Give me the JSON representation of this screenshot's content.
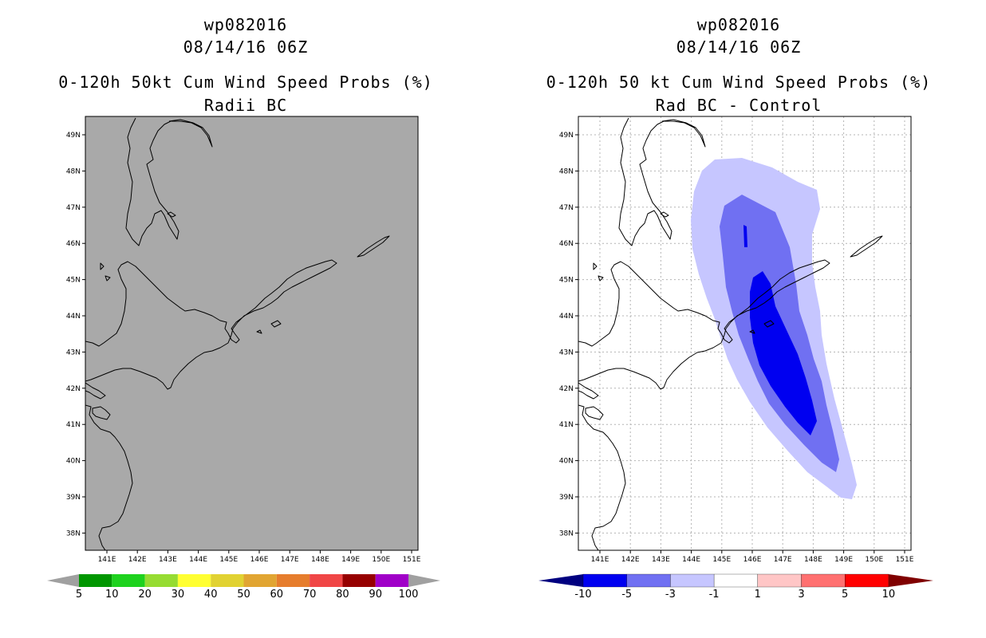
{
  "chart_data": [
    {
      "type": "map",
      "title": [
        "wp082016",
        "08/14/16 06Z",
        "0-120h 50kt Cum Wind Speed Probs (%)",
        "Radii BC"
      ],
      "lon_ticks": [
        "141E",
        "142E",
        "143E",
        "144E",
        "145E",
        "146E",
        "147E",
        "148E",
        "149E",
        "150E",
        "151E"
      ],
      "lat_ticks": [
        "49N",
        "48N",
        "47N",
        "46N",
        "45N",
        "44N",
        "43N",
        "42N",
        "41N",
        "40N",
        "39N",
        "38N"
      ],
      "grid": false,
      "field": "no probabilities above 5% (gray fill)",
      "fill_color": "#a9a9a9",
      "colorbar": {
        "labels": [
          "5",
          "10",
          "20",
          "30",
          "40",
          "50",
          "60",
          "70",
          "80",
          "90",
          "100"
        ],
        "colors": [
          "#009600",
          "#1ed21e",
          "#96dc32",
          "#ffff32",
          "#e1d232",
          "#e1a532",
          "#e67d2d",
          "#f04646",
          "#960000",
          "#a000c8"
        ],
        "end_color": "#a0a0a0"
      }
    },
    {
      "type": "map",
      "title": [
        "wp082016",
        "08/14/16 06Z",
        "0-120h 50 kt Cum Wind Speed Probs (%)",
        "Rad BC - Control"
      ],
      "lon_ticks": [
        "141E",
        "142E",
        "143E",
        "144E",
        "145E",
        "146E",
        "147E",
        "148E",
        "149E",
        "150E",
        "151E"
      ],
      "lat_ticks": [
        "49N",
        "48N",
        "47N",
        "46N",
        "45N",
        "44N",
        "43N",
        "42N",
        "41N",
        "40N",
        "39N",
        "38N"
      ],
      "grid": true,
      "field": "difference contours, negative values along storm track",
      "levels": [
        {
          "range": "-3 to -1",
          "color": "#c6c6ff"
        },
        {
          "range": "-5 to -3",
          "color": "#7070f2"
        },
        {
          "range": "-10 to -5",
          "color": "#0000f0"
        }
      ],
      "colorbar": {
        "labels": [
          "-10",
          "-5",
          "-3",
          "-1",
          "1",
          "3",
          "5",
          "10"
        ],
        "colors": [
          "#0000f0",
          "#7070f2",
          "#c6c6ff",
          "#ffffff",
          "#ffc6c6",
          "#ff7070",
          "#ff0000"
        ],
        "end_colors": [
          "#000080",
          "#800000"
        ]
      }
    }
  ]
}
